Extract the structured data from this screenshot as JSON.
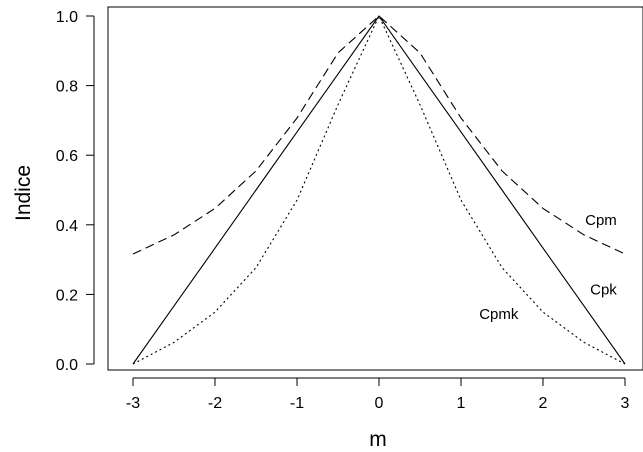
{
  "chart_data": {
    "type": "line",
    "title": "",
    "xlabel": "m",
    "ylabel": "Indice",
    "xlim": [
      -3,
      3
    ],
    "ylim": [
      0,
      1
    ],
    "xticks": [
      -3,
      -2,
      -1,
      0,
      1,
      2,
      3
    ],
    "yticks": [
      0.0,
      0.2,
      0.4,
      0.6,
      0.8,
      1.0
    ],
    "xtick_labels": [
      "-3",
      "-2",
      "-1",
      "0",
      "1",
      "2",
      "3"
    ],
    "ytick_labels": [
      "0.0",
      "0.2",
      "0.4",
      "0.6",
      "0.8",
      "1.0"
    ],
    "grid": false,
    "series": [
      {
        "name": "Cpm",
        "line_style": "dashed",
        "x": [
          -3,
          -2.5,
          -2,
          -1.5,
          -1,
          -0.5,
          0,
          0.5,
          1,
          1.5,
          2,
          2.5,
          3
        ],
        "y": [
          0.316,
          0.371,
          0.447,
          0.555,
          0.707,
          0.894,
          1.0,
          0.894,
          0.707,
          0.555,
          0.447,
          0.371,
          0.316
        ]
      },
      {
        "name": "Cpk",
        "line_style": "solid",
        "x": [
          -3,
          -2.5,
          -2,
          -1.5,
          -1,
          -0.5,
          0,
          0.5,
          1,
          1.5,
          2,
          2.5,
          3
        ],
        "y": [
          0.0,
          0.167,
          0.333,
          0.5,
          0.667,
          0.833,
          1.0,
          0.833,
          0.667,
          0.5,
          0.333,
          0.167,
          0.0
        ]
      },
      {
        "name": "Cpmk",
        "line_style": "dotted",
        "x": [
          -3,
          -2.5,
          -2,
          -1.5,
          -1,
          -0.5,
          0,
          0.5,
          1,
          1.5,
          2,
          2.5,
          3
        ],
        "y": [
          0.0,
          0.062,
          0.149,
          0.277,
          0.471,
          0.745,
          1.0,
          0.745,
          0.471,
          0.277,
          0.149,
          0.062,
          0.0
        ]
      }
    ],
    "annotations": [
      {
        "text": "Cpm",
        "x": 2.9,
        "y": 0.4,
        "anchor": "end"
      },
      {
        "text": "Cpk",
        "x": 2.9,
        "y": 0.2,
        "anchor": "end"
      },
      {
        "text": "Cpmk",
        "x": 1.7,
        "y": 0.13,
        "anchor": "end"
      }
    ]
  }
}
